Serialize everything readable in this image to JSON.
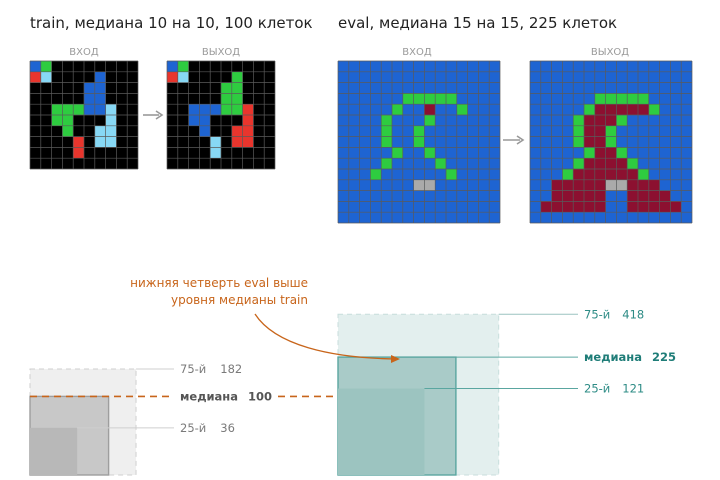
{
  "colors": {
    "grid_line": "#5a5a5a",
    "cell_black": "#000000",
    "cell_blue": "#1e64d2",
    "cell_red": "#e8352d",
    "cell_green": "#2ecc40",
    "cell_cyan": "#87d8f5",
    "cell_gray": "#aaaaaa",
    "cell_maroon": "#8c1030",
    "arrow": "#999999",
    "train_back": "#efefef",
    "train_q75": "#c8c8c8",
    "train_q25": "#b8b8b8",
    "train_label": "#7a7a7a",
    "train_median": "#555555",
    "eval_back": "#e3efee",
    "eval_q75": "#a9cbc8",
    "eval_q25": "#9cc4c0",
    "eval_label": "#2e8c86",
    "eval_median": "#1f7d78",
    "annotation": "#c8651b"
  },
  "train": {
    "title": "train, медиана 10 на 10, 100 клеток",
    "input_label": "ВХОД",
    "output_label": "ВЫХОД",
    "input_grid": {
      "size": 10,
      "background": "black",
      "cells": [
        {
          "r": 0,
          "c": 0,
          "color": "blue"
        },
        {
          "r": 0,
          "c": 1,
          "color": "green"
        },
        {
          "r": 1,
          "c": 0,
          "color": "red"
        },
        {
          "r": 1,
          "c": 1,
          "color": "cyan"
        },
        {
          "r": 1,
          "c": 6,
          "color": "blue"
        },
        {
          "r": 2,
          "c": 5,
          "color": "blue"
        },
        {
          "r": 2,
          "c": 6,
          "color": "blue"
        },
        {
          "r": 3,
          "c": 5,
          "color": "blue"
        },
        {
          "r": 3,
          "c": 6,
          "color": "blue"
        },
        {
          "r": 4,
          "c": 2,
          "color": "green"
        },
        {
          "r": 4,
          "c": 3,
          "color": "green"
        },
        {
          "r": 4,
          "c": 4,
          "color": "green"
        },
        {
          "r": 4,
          "c": 5,
          "color": "blue"
        },
        {
          "r": 4,
          "c": 6,
          "color": "blue"
        },
        {
          "r": 4,
          "c": 7,
          "color": "cyan"
        },
        {
          "r": 5,
          "c": 2,
          "color": "green"
        },
        {
          "r": 5,
          "c": 3,
          "color": "green"
        },
        {
          "r": 5,
          "c": 7,
          "color": "cyan"
        },
        {
          "r": 6,
          "c": 3,
          "color": "green"
        },
        {
          "r": 6,
          "c": 6,
          "color": "cyan"
        },
        {
          "r": 6,
          "c": 7,
          "color": "cyan"
        },
        {
          "r": 7,
          "c": 4,
          "color": "red"
        },
        {
          "r": 7,
          "c": 6,
          "color": "cyan"
        },
        {
          "r": 7,
          "c": 7,
          "color": "cyan"
        },
        {
          "r": 8,
          "c": 4,
          "color": "red"
        }
      ]
    },
    "output_grid": {
      "size": 10,
      "background": "black",
      "cells": [
        {
          "r": 0,
          "c": 0,
          "color": "blue"
        },
        {
          "r": 0,
          "c": 1,
          "color": "green"
        },
        {
          "r": 1,
          "c": 0,
          "color": "red"
        },
        {
          "r": 1,
          "c": 1,
          "color": "cyan"
        },
        {
          "r": 1,
          "c": 6,
          "color": "green"
        },
        {
          "r": 2,
          "c": 5,
          "color": "green"
        },
        {
          "r": 2,
          "c": 6,
          "color": "green"
        },
        {
          "r": 3,
          "c": 5,
          "color": "green"
        },
        {
          "r": 3,
          "c": 6,
          "color": "green"
        },
        {
          "r": 4,
          "c": 2,
          "color": "blue"
        },
        {
          "r": 4,
          "c": 3,
          "color": "blue"
        },
        {
          "r": 4,
          "c": 4,
          "color": "blue"
        },
        {
          "r": 4,
          "c": 5,
          "color": "green"
        },
        {
          "r": 4,
          "c": 6,
          "color": "green"
        },
        {
          "r": 4,
          "c": 7,
          "color": "red"
        },
        {
          "r": 5,
          "c": 2,
          "color": "blue"
        },
        {
          "r": 5,
          "c": 3,
          "color": "blue"
        },
        {
          "r": 5,
          "c": 7,
          "color": "red"
        },
        {
          "r": 6,
          "c": 3,
          "color": "blue"
        },
        {
          "r": 6,
          "c": 6,
          "color": "red"
        },
        {
          "r": 6,
          "c": 7,
          "color": "red"
        },
        {
          "r": 7,
          "c": 4,
          "color": "cyan"
        },
        {
          "r": 7,
          "c": 6,
          "color": "red"
        },
        {
          "r": 7,
          "c": 7,
          "color": "red"
        },
        {
          "r": 8,
          "c": 4,
          "color": "cyan"
        }
      ]
    }
  },
  "eval": {
    "title": "eval, медиана 15 на 15, 225 клеток",
    "input_label": "ВХОД",
    "output_label": "ВЫХОД",
    "input_grid": {
      "size": 15,
      "background": "blue",
      "cells": [
        {
          "r": 3,
          "c": 6,
          "color": "green"
        },
        {
          "r": 3,
          "c": 7,
          "color": "green"
        },
        {
          "r": 3,
          "c": 8,
          "color": "green"
        },
        {
          "r": 3,
          "c": 9,
          "color": "green"
        },
        {
          "r": 3,
          "c": 10,
          "color": "green"
        },
        {
          "r": 4,
          "c": 5,
          "color": "green"
        },
        {
          "r": 4,
          "c": 8,
          "color": "maroon"
        },
        {
          "r": 4,
          "c": 11,
          "color": "green"
        },
        {
          "r": 5,
          "c": 4,
          "color": "green"
        },
        {
          "r": 5,
          "c": 8,
          "color": "green"
        },
        {
          "r": 6,
          "c": 4,
          "color": "green"
        },
        {
          "r": 6,
          "c": 7,
          "color": "green"
        },
        {
          "r": 7,
          "c": 4,
          "color": "green"
        },
        {
          "r": 7,
          "c": 7,
          "color": "green"
        },
        {
          "r": 8,
          "c": 5,
          "color": "green"
        },
        {
          "r": 8,
          "c": 8,
          "color": "green"
        },
        {
          "r": 9,
          "c": 4,
          "color": "green"
        },
        {
          "r": 9,
          "c": 9,
          "color": "green"
        },
        {
          "r": 10,
          "c": 3,
          "color": "green"
        },
        {
          "r": 10,
          "c": 10,
          "color": "green"
        },
        {
          "r": 11,
          "c": 7,
          "color": "gray"
        },
        {
          "r": 11,
          "c": 8,
          "color": "gray"
        }
      ]
    },
    "output_grid": {
      "size": 15,
      "background": "blue",
      "cells": [
        {
          "r": 3,
          "c": 6,
          "color": "green"
        },
        {
          "r": 3,
          "c": 7,
          "color": "green"
        },
        {
          "r": 3,
          "c": 8,
          "color": "green"
        },
        {
          "r": 3,
          "c": 9,
          "color": "green"
        },
        {
          "r": 3,
          "c": 10,
          "color": "green"
        },
        {
          "r": 4,
          "c": 5,
          "color": "green"
        },
        {
          "r": 4,
          "c": 6,
          "color": "maroon"
        },
        {
          "r": 4,
          "c": 7,
          "color": "maroon"
        },
        {
          "r": 4,
          "c": 8,
          "color": "maroon"
        },
        {
          "r": 4,
          "c": 9,
          "color": "maroon"
        },
        {
          "r": 4,
          "c": 10,
          "color": "maroon"
        },
        {
          "r": 4,
          "c": 11,
          "color": "green"
        },
        {
          "r": 5,
          "c": 4,
          "color": "green"
        },
        {
          "r": 5,
          "c": 5,
          "color": "maroon"
        },
        {
          "r": 5,
          "c": 6,
          "color": "maroon"
        },
        {
          "r": 5,
          "c": 7,
          "color": "maroon"
        },
        {
          "r": 5,
          "c": 8,
          "color": "green"
        },
        {
          "r": 6,
          "c": 4,
          "color": "green"
        },
        {
          "r": 6,
          "c": 5,
          "color": "maroon"
        },
        {
          "r": 6,
          "c": 6,
          "color": "maroon"
        },
        {
          "r": 6,
          "c": 7,
          "color": "green"
        },
        {
          "r": 7,
          "c": 4,
          "color": "green"
        },
        {
          "r": 7,
          "c": 5,
          "color": "maroon"
        },
        {
          "r": 7,
          "c": 6,
          "color": "maroon"
        },
        {
          "r": 7,
          "c": 7,
          "color": "green"
        },
        {
          "r": 8,
          "c": 5,
          "color": "green"
        },
        {
          "r": 8,
          "c": 6,
          "color": "maroon"
        },
        {
          "r": 8,
          "c": 7,
          "color": "maroon"
        },
        {
          "r": 8,
          "c": 8,
          "color": "green"
        },
        {
          "r": 9,
          "c": 4,
          "color": "green"
        },
        {
          "r": 9,
          "c": 5,
          "color": "maroon"
        },
        {
          "r": 9,
          "c": 6,
          "color": "maroon"
        },
        {
          "r": 9,
          "c": 7,
          "color": "maroon"
        },
        {
          "r": 9,
          "c": 8,
          "color": "maroon"
        },
        {
          "r": 9,
          "c": 9,
          "color": "green"
        },
        {
          "r": 10,
          "c": 3,
          "color": "green"
        },
        {
          "r": 10,
          "c": 4,
          "color": "maroon"
        },
        {
          "r": 10,
          "c": 5,
          "color": "maroon"
        },
        {
          "r": 10,
          "c": 6,
          "color": "maroon"
        },
        {
          "r": 10,
          "c": 7,
          "color": "maroon"
        },
        {
          "r": 10,
          "c": 8,
          "color": "maroon"
        },
        {
          "r": 10,
          "c": 9,
          "color": "maroon"
        },
        {
          "r": 10,
          "c": 10,
          "color": "green"
        },
        {
          "r": 11,
          "c": 2,
          "color": "maroon"
        },
        {
          "r": 11,
          "c": 3,
          "color": "maroon"
        },
        {
          "r": 11,
          "c": 4,
          "color": "maroon"
        },
        {
          "r": 11,
          "c": 5,
          "color": "maroon"
        },
        {
          "r": 11,
          "c": 6,
          "color": "maroon"
        },
        {
          "r": 11,
          "c": 7,
          "color": "gray"
        },
        {
          "r": 11,
          "c": 8,
          "color": "gray"
        },
        {
          "r": 11,
          "c": 9,
          "color": "maroon"
        },
        {
          "r": 11,
          "c": 10,
          "color": "maroon"
        },
        {
          "r": 11,
          "c": 11,
          "color": "maroon"
        },
        {
          "r": 12,
          "c": 2,
          "color": "maroon"
        },
        {
          "r": 12,
          "c": 3,
          "color": "maroon"
        },
        {
          "r": 12,
          "c": 4,
          "color": "maroon"
        },
        {
          "r": 12,
          "c": 5,
          "color": "maroon"
        },
        {
          "r": 12,
          "c": 6,
          "color": "maroon"
        },
        {
          "r": 12,
          "c": 9,
          "color": "maroon"
        },
        {
          "r": 12,
          "c": 10,
          "color": "maroon"
        },
        {
          "r": 12,
          "c": 11,
          "color": "maroon"
        },
        {
          "r": 12,
          "c": 12,
          "color": "maroon"
        },
        {
          "r": 13,
          "c": 1,
          "color": "maroon"
        },
        {
          "r": 13,
          "c": 2,
          "color": "maroon"
        },
        {
          "r": 13,
          "c": 3,
          "color": "maroon"
        },
        {
          "r": 13,
          "c": 4,
          "color": "maroon"
        },
        {
          "r": 13,
          "c": 5,
          "color": "maroon"
        },
        {
          "r": 13,
          "c": 6,
          "color": "maroon"
        },
        {
          "r": 13,
          "c": 9,
          "color": "maroon"
        },
        {
          "r": 13,
          "c": 10,
          "color": "maroon"
        },
        {
          "r": 13,
          "c": 11,
          "color": "maroon"
        },
        {
          "r": 13,
          "c": 12,
          "color": "maroon"
        },
        {
          "r": 13,
          "c": 13,
          "color": "maroon"
        }
      ]
    }
  },
  "size_comparison": {
    "unit": "клеток",
    "train": {
      "q75_label": "75-й",
      "q75_value": "182",
      "q75": 182,
      "median_label": "медиана",
      "median_value": "100",
      "median": 100,
      "q25_label": "25-й",
      "q25_value": "36",
      "q25": 36
    },
    "eval": {
      "q75_label": "75-й",
      "q75_value": "418",
      "q75": 418,
      "median_label": "медиана",
      "median_value": "225",
      "median": 225,
      "q25_label": "25-й",
      "q25_value": "121",
      "q25": 121
    },
    "annotation_line1": "нижняя четверть eval выше",
    "annotation_line2": "уровня медианы train"
  }
}
